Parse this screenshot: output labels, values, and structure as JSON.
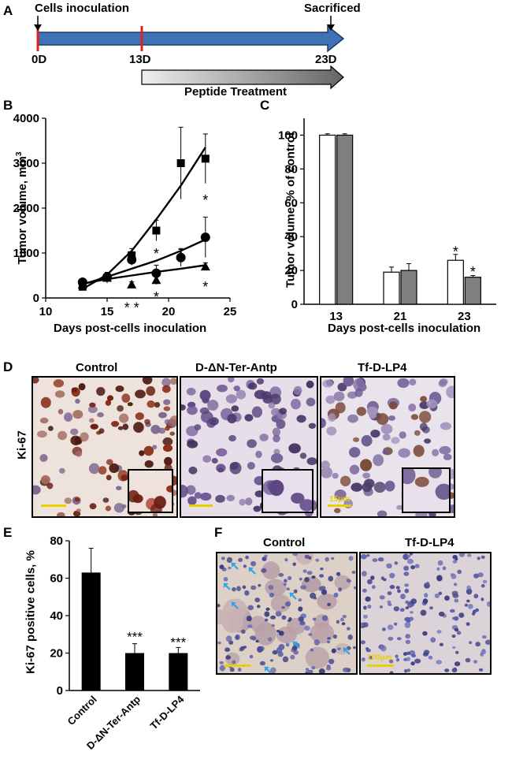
{
  "panels": {
    "A": "A",
    "B": "B",
    "C": "C",
    "D": "D",
    "E": "E",
    "F": "F"
  },
  "timeline": {
    "start_label": "Cells inoculation",
    "end_label": "Sacrificed",
    "ticks": [
      "0D",
      "13D",
      "23D"
    ],
    "treatment_label": "Peptide Treatment",
    "colors": {
      "arrow": "#3f72b4",
      "treatment_light": "#e6e6e6",
      "treatment_dark": "#6f6f6f",
      "tick": "#e02020"
    }
  },
  "panel_b": {
    "ylabel": "Tumor volume, mm",
    "ylabel_sup": "3",
    "xlabel": "Days post-cells inoculation"
  },
  "panel_c": {
    "ylabel": "Tumor volume, % of control",
    "xlabel": "Days post-cells inoculation"
  },
  "panel_d": {
    "row_label": "Ki-67",
    "titles": [
      "Control",
      "D-ΔN-Ter-Antp",
      "Tf-D-LP4"
    ],
    "scale_label": "15μm"
  },
  "panel_e": {
    "ylabel": "Ki-67 positive cells, %"
  },
  "panel_f": {
    "titles": [
      "Control",
      "Tf-D-LP4"
    ],
    "scale_label": "100μm"
  },
  "chart_data": [
    {
      "id": "B",
      "type": "line",
      "xlabel": "Days post-cells inoculation",
      "ylabel": "Tumor volume, mm3",
      "xlim": [
        10,
        25
      ],
      "ylim": [
        0,
        4000
      ],
      "xticks": [
        10,
        15,
        20,
        25
      ],
      "yticks": [
        0,
        1000,
        2000,
        3000,
        4000
      ],
      "series": [
        {
          "marker": "square",
          "x": [
            13,
            15,
            17,
            19,
            21,
            23
          ],
          "y": [
            250,
            450,
            950,
            1500,
            3000,
            3100
          ],
          "err": [
            60,
            120,
            150,
            230,
            800,
            550
          ],
          "fit": [
            200,
            520,
            1050,
            1750,
            2500,
            3350
          ]
        },
        {
          "marker": "circle",
          "x": [
            13,
            15,
            17,
            19,
            21,
            23
          ],
          "y": [
            350,
            470,
            850,
            550,
            900,
            1350
          ],
          "err": [
            60,
            90,
            120,
            180,
            200,
            450
          ],
          "fit": [
            300,
            470,
            650,
            830,
            1050,
            1300
          ]
        },
        {
          "marker": "triangle",
          "x": [
            13,
            15,
            17,
            19,
            21,
            23
          ],
          "y": [
            300,
            450,
            300,
            400,
            950,
            700
          ],
          "err": [
            50,
            80,
            60,
            100,
            130,
            80
          ],
          "fit": [
            320,
            420,
            500,
            580,
            650,
            730
          ]
        }
      ],
      "annotations": [
        {
          "text": "*",
          "x": 19,
          "y": 1050
        },
        {
          "text": "*",
          "x": 23,
          "y": 2250
        },
        {
          "text": "* *",
          "x": 17,
          "y": -150
        },
        {
          "text": "*",
          "x": 19,
          "y": 90
        },
        {
          "text": "*",
          "x": 23,
          "y": 320
        }
      ]
    },
    {
      "id": "C",
      "type": "bar",
      "xlabel": "Days post-cells inoculation",
      "ylabel": "Tumor volume, % of control",
      "categories": [
        "13",
        "21",
        "23"
      ],
      "ylim": [
        0,
        110
      ],
      "yticks": [
        0,
        20,
        40,
        60,
        80,
        100
      ],
      "series": [
        {
          "color": "#ffffff",
          "values": [
            100,
            19,
            26
          ],
          "err": [
            0.8,
            3,
            3.5
          ]
        },
        {
          "color": "#7f7f7f",
          "values": [
            100,
            20,
            16
          ],
          "err": [
            0.8,
            4,
            1
          ]
        }
      ],
      "annotations": [
        {
          "text": "*",
          "category": "23",
          "series": 0,
          "y": 31
        },
        {
          "text": "*",
          "category": "23",
          "series": 1,
          "y": 19
        }
      ]
    },
    {
      "id": "E",
      "type": "bar",
      "ylabel": "Ki-67 positive cells, %",
      "categories": [
        "Control",
        "D-ΔN-Ter-Antp",
        "Tf-D-LP4"
      ],
      "ylim": [
        0,
        80
      ],
      "yticks": [
        0,
        20,
        40,
        60,
        80
      ],
      "values": [
        63,
        20,
        20
      ],
      "err": [
        13,
        5,
        3
      ],
      "color": "#000000",
      "annotations": [
        {
          "text": "***",
          "category": "D-ΔN-Ter-Antp",
          "y": 28
        },
        {
          "text": "***",
          "category": "Tf-D-LP4",
          "y": 25
        }
      ]
    }
  ]
}
